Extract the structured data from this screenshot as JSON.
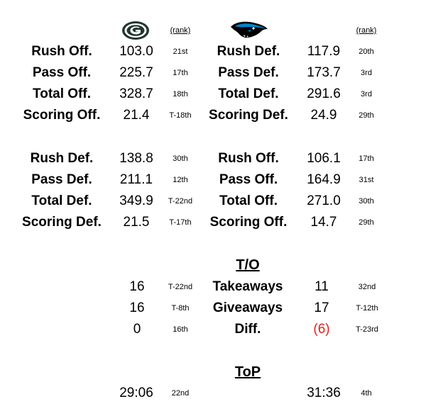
{
  "header": {
    "rank_label_left": "(rank)",
    "rank_label_right": "(rank)",
    "logo_left": "packers-g-logo-icon",
    "logo_right": "panther-logo-icon"
  },
  "block1": [
    {
      "left_label": "Rush Off.",
      "left_value": "103.0",
      "left_rank": "21st",
      "right_label": "Rush Def.",
      "right_value": "117.9",
      "right_rank": "20th"
    },
    {
      "left_label": "Pass Off.",
      "left_value": "225.7",
      "left_rank": "17th",
      "right_label": "Pass Def.",
      "right_value": "173.7",
      "right_rank": "3rd"
    },
    {
      "left_label": "Total Off.",
      "left_value": "328.7",
      "left_rank": "18th",
      "right_label": "Total Def.",
      "right_value": "291.6",
      "right_rank": "3rd"
    },
    {
      "left_label": "Scoring Off.",
      "left_value": "21.4",
      "left_rank": "T-18th",
      "right_label": "Scoring Def.",
      "right_value": "24.9",
      "right_rank": "29th"
    }
  ],
  "block2": [
    {
      "left_label": "Rush Def.",
      "left_value": "138.8",
      "left_rank": "30th",
      "right_label": "Rush Off.",
      "right_value": "106.1",
      "right_rank": "17th"
    },
    {
      "left_label": "Pass Def.",
      "left_value": "211.1",
      "left_rank": "12th",
      "right_label": "Pass Off.",
      "right_value": "164.9",
      "right_rank": "31st"
    },
    {
      "left_label": "Total Def.",
      "left_value": "349.9",
      "left_rank": "T-22nd",
      "right_label": "Total Off.",
      "right_value": "271.0",
      "right_rank": "30th"
    },
    {
      "left_label": "Scoring Def.",
      "left_value": "21.5",
      "left_rank": "T-17th",
      "right_label": "Scoring Off.",
      "right_value": "14.7",
      "right_rank": "29th"
    }
  ],
  "turnovers": {
    "title": "T/O",
    "rows": [
      {
        "left_value": "16",
        "left_rank": "T-22nd",
        "label": "Takeaways",
        "right_value": "11",
        "right_rank": "32nd"
      },
      {
        "left_value": "16",
        "left_rank": "T-8th",
        "label": "Giveaways",
        "right_value": "17",
        "right_rank": "T-12th"
      },
      {
        "left_value": "0",
        "left_rank": "16th",
        "label": "Diff.",
        "right_value": "(6)",
        "right_rank": "T-23rd"
      }
    ]
  },
  "top": {
    "title": "ToP",
    "left_value": "29:06",
    "left_rank": "22nd",
    "right_value": "31:36",
    "right_rank": "4th"
  },
  "colors": {
    "negative": "#e0201b",
    "packers_green": "#203731",
    "panthers_blue": "#0085ca"
  }
}
